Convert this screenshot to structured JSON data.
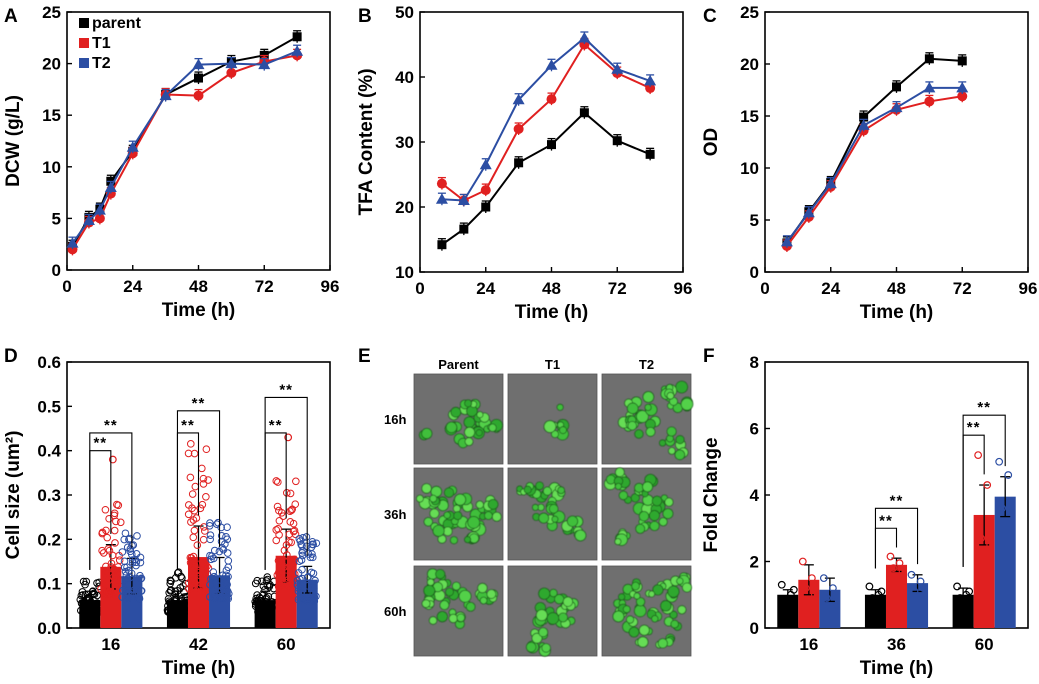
{
  "colors": {
    "parent": "#000000",
    "T1": "#e02020",
    "T2": "#2c4ea3"
  },
  "legend": [
    "parent",
    "T1",
    "T2"
  ],
  "microscopy": {
    "letter": "E",
    "columns": [
      "Parent",
      "T1",
      "T2"
    ],
    "rows": [
      "16h",
      "36h",
      "60h"
    ]
  },
  "chart_data": [
    {
      "id": "A",
      "type": "line",
      "letter": "A",
      "xlabel": "Time (h)",
      "ylabel": "DCW (g/L)",
      "xlim": [
        0,
        96
      ],
      "ylim": [
        0,
        25
      ],
      "xticks": [
        0,
        24,
        48,
        72,
        96
      ],
      "yticks": [
        0,
        5,
        10,
        15,
        20,
        25
      ],
      "legend_position": "top-left",
      "series": [
        {
          "name": "parent",
          "marker": "square",
          "x": [
            2,
            8,
            12,
            16,
            24,
            36,
            48,
            60,
            72,
            84
          ],
          "y": [
            2.3,
            5.1,
            5.9,
            8.6,
            11.5,
            17.0,
            18.6,
            20.2,
            20.8,
            22.6
          ]
        },
        {
          "name": "T1",
          "marker": "circle",
          "x": [
            2,
            8,
            12,
            16,
            24,
            36,
            48,
            60,
            72,
            84
          ],
          "y": [
            2.0,
            4.6,
            5.0,
            7.4,
            11.3,
            17.0,
            16.9,
            19.1,
            20.2,
            20.8
          ]
        },
        {
          "name": "T2",
          "marker": "triangle",
          "x": [
            2,
            8,
            12,
            16,
            24,
            36,
            48,
            60,
            72,
            84
          ],
          "y": [
            2.6,
            4.8,
            5.8,
            8.0,
            11.9,
            16.9,
            19.9,
            20.0,
            19.9,
            21.2
          ]
        }
      ]
    },
    {
      "id": "B",
      "type": "line",
      "letter": "B",
      "xlabel": "Time (h)",
      "ylabel": "TFA Content (%)",
      "xlim": [
        0,
        96
      ],
      "ylim": [
        10,
        50
      ],
      "xticks": [
        0,
        24,
        48,
        72,
        96
      ],
      "yticks": [
        10,
        20,
        30,
        40,
        50
      ],
      "series": [
        {
          "name": "parent",
          "marker": "square",
          "x": [
            8,
            16,
            24,
            36,
            48,
            60,
            72,
            84
          ],
          "y": [
            14.2,
            16.6,
            20.0,
            26.8,
            29.6,
            34.5,
            30.2,
            28.1
          ]
        },
        {
          "name": "T1",
          "marker": "circle",
          "x": [
            8,
            16,
            24,
            36,
            48,
            60,
            72,
            84
          ],
          "y": [
            23.6,
            21.0,
            22.6,
            32.0,
            36.6,
            45.0,
            40.6,
            38.3
          ]
        },
        {
          "name": "T2",
          "marker": "triangle",
          "x": [
            8,
            16,
            24,
            36,
            48,
            60,
            72,
            84
          ],
          "y": [
            21.2,
            21.0,
            26.5,
            36.5,
            41.8,
            46.0,
            41.2,
            39.4
          ]
        }
      ]
    },
    {
      "id": "C",
      "type": "line",
      "letter": "C",
      "xlabel": "Time (h)",
      "ylabel": "OD",
      "xlim": [
        0,
        96
      ],
      "ylim": [
        0,
        25
      ],
      "xticks": [
        0,
        24,
        48,
        72,
        96
      ],
      "yticks": [
        0,
        5,
        10,
        15,
        20,
        25
      ],
      "series": [
        {
          "name": "parent",
          "marker": "square",
          "x": [
            8,
            16,
            24,
            36,
            48,
            60,
            72
          ],
          "y": [
            2.8,
            5.8,
            8.6,
            14.9,
            17.8,
            20.5,
            20.3
          ]
        },
        {
          "name": "T1",
          "marker": "circle",
          "x": [
            8,
            16,
            24,
            36,
            48,
            60,
            72
          ],
          "y": [
            2.5,
            5.3,
            8.2,
            13.6,
            15.6,
            16.4,
            16.9
          ]
        },
        {
          "name": "T2",
          "marker": "triangle",
          "x": [
            8,
            16,
            24,
            36,
            48,
            60,
            72
          ],
          "y": [
            2.9,
            5.7,
            8.5,
            14.1,
            15.8,
            17.7,
            17.7
          ]
        }
      ]
    },
    {
      "id": "D",
      "type": "bar",
      "letter": "D",
      "xlabel": "Time (h)",
      "ylabel": "Cell size (um²)",
      "categories": [
        "16",
        "42",
        "60"
      ],
      "ylim": [
        0,
        0.6
      ],
      "yticks": [
        0.0,
        0.1,
        0.2,
        0.3,
        0.4,
        0.5,
        0.6
      ],
      "series": [
        {
          "name": "parent",
          "values": [
            0.063,
            0.063,
            0.063
          ],
          "errors": [
            0.02,
            0.02,
            0.02
          ],
          "scatter_max": [
            0.11,
            0.13,
            0.12
          ]
        },
        {
          "name": "T1",
          "values": [
            0.138,
            0.16,
            0.163
          ],
          "errors": [
            0.05,
            0.07,
            0.06
          ],
          "scatter_max": [
            0.29,
            0.42,
            0.34
          ]
        },
        {
          "name": "T2",
          "values": [
            0.117,
            0.119,
            0.109
          ],
          "errors": [
            0.04,
            0.04,
            0.03
          ],
          "scatter_max": [
            0.22,
            0.24,
            0.21
          ]
        }
      ],
      "outliers": [
        {
          "series": "T1",
          "category": "16",
          "value": 0.38
        },
        {
          "series": "T1",
          "category": "60",
          "value": 0.43
        }
      ],
      "significance": [
        {
          "category": "16",
          "label": "**",
          "from": "parent",
          "to": "T1",
          "height": 0.4
        },
        {
          "category": "16",
          "label": "**",
          "from": "parent",
          "to": "T2",
          "height": 0.44
        },
        {
          "category": "42",
          "label": "**",
          "from": "parent",
          "to": "T1",
          "height": 0.44
        },
        {
          "category": "42",
          "label": "**",
          "from": "parent",
          "to": "T2",
          "height": 0.49
        },
        {
          "category": "60",
          "label": "**",
          "from": "parent",
          "to": "T1",
          "height": 0.44
        },
        {
          "category": "60",
          "label": "**",
          "from": "parent",
          "to": "T2",
          "height": 0.52
        }
      ]
    },
    {
      "id": "F",
      "type": "bar",
      "letter": "F",
      "xlabel": "Time (h)",
      "ylabel": "Fold Change",
      "categories": [
        "16",
        "36",
        "60"
      ],
      "ylim": [
        0,
        8
      ],
      "yticks": [
        0,
        2,
        4,
        6,
        8
      ],
      "series": [
        {
          "name": "parent",
          "values": [
            1.0,
            1.0,
            1.0
          ],
          "errors": [
            0.15,
            0.15,
            0.2
          ],
          "points": [
            [
              1.3,
              1.0,
              0.85,
              1.15
            ],
            [
              1.25,
              1.0,
              0.9,
              1.1
            ],
            [
              1.25,
              1.0,
              0.9,
              1.1
            ]
          ]
        },
        {
          "name": "T1",
          "values": [
            1.45,
            1.9,
            3.4
          ],
          "errors": [
            0.45,
            0.2,
            0.9
          ],
          "points": [
            [
              2.0,
              1.5,
              1.2,
              1.0
            ],
            [
              2.15,
              1.95,
              1.8,
              1.7
            ],
            [
              5.2,
              4.3,
              2.7,
              2.5
            ]
          ]
        },
        {
          "name": "T2",
          "values": [
            1.15,
            1.35,
            3.95
          ],
          "errors": [
            0.35,
            0.25,
            0.6
          ],
          "points": [
            [
              1.5,
              1.2,
              0.9,
              0.95
            ],
            [
              1.6,
              1.4,
              1.1,
              1.2
            ],
            [
              5.0,
              4.6,
              3.6,
              3.5
            ]
          ]
        }
      ],
      "significance": [
        {
          "category": "36",
          "label": "**",
          "from": "parent",
          "to": "T1",
          "height": 3.0
        },
        {
          "category": "36",
          "label": "**",
          "from": "parent",
          "to": "T2",
          "height": 3.6
        },
        {
          "category": "60",
          "label": "**",
          "from": "parent",
          "to": "T1",
          "height": 5.8
        },
        {
          "category": "60",
          "label": "**",
          "from": "parent",
          "to": "T2",
          "height": 6.4
        }
      ]
    }
  ]
}
